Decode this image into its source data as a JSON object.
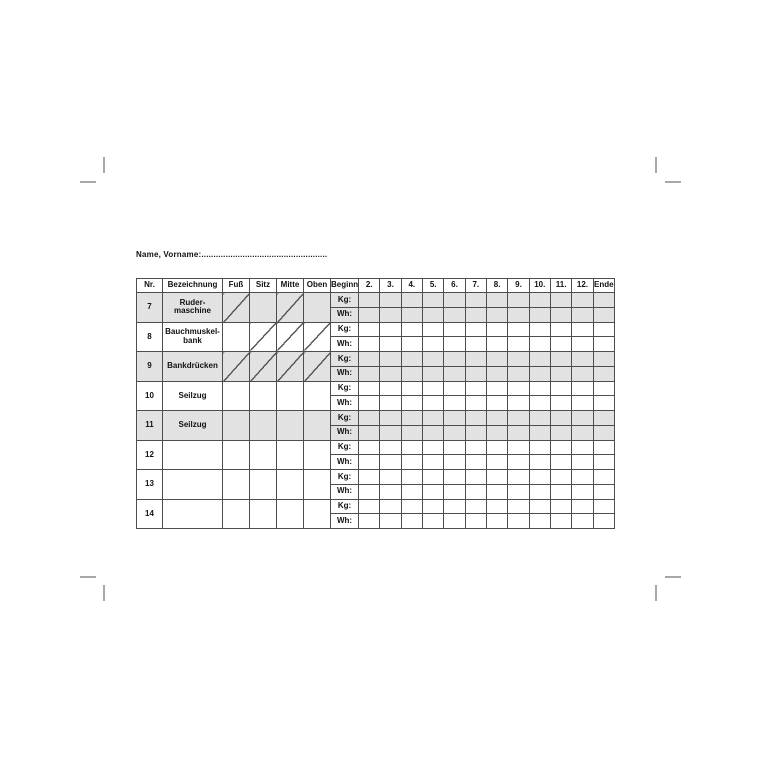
{
  "header": {
    "name_label": "Name, Vorname:",
    "dots": "...................................................."
  },
  "table": {
    "headers": [
      "Nr.",
      "Bezeichnung",
      "Fuß",
      "Sitz",
      "Mitte",
      "Oben",
      "Beginn",
      "2.",
      "3.",
      "4.",
      "5.",
      "6.",
      "7.",
      "8.",
      "9.",
      "10.",
      "11.",
      "12.",
      "Ende"
    ],
    "row_labels": {
      "kg": "Kg:",
      "wh": "Wh:"
    },
    "rows": [
      {
        "nr": "7",
        "name_lines": [
          "Ruder-",
          "maschine"
        ],
        "slashes": [
          "Fuß",
          "Mitte"
        ],
        "shaded": true
      },
      {
        "nr": "8",
        "name_lines": [
          "Bauchmuskel-",
          "bank"
        ],
        "slashes": [
          "Sitz",
          "Mitte",
          "Oben"
        ],
        "shaded": false
      },
      {
        "nr": "9",
        "name_lines": [
          "Bankdrücken"
        ],
        "slashes": [
          "Fuß",
          "Sitz",
          "Mitte",
          "Oben"
        ],
        "shaded": true
      },
      {
        "nr": "10",
        "name_lines": [
          "Seilzug"
        ],
        "slashes": [],
        "shaded": false
      },
      {
        "nr": "11",
        "name_lines": [
          "Seilzug"
        ],
        "slashes": [],
        "shaded": true
      },
      {
        "nr": "12",
        "name_lines": [],
        "slashes": [],
        "shaded": false
      },
      {
        "nr": "13",
        "name_lines": [],
        "slashes": [],
        "shaded": false
      },
      {
        "nr": "14",
        "name_lines": [],
        "slashes": [],
        "shaded": false
      }
    ],
    "entry_values": ""
  },
  "colors": {
    "shaded_row": "#e2e2e2",
    "grid_line": "#4d4d4d",
    "slash_line": "#555555",
    "crop_mark": "#a8a8a8",
    "text": "#111111"
  }
}
